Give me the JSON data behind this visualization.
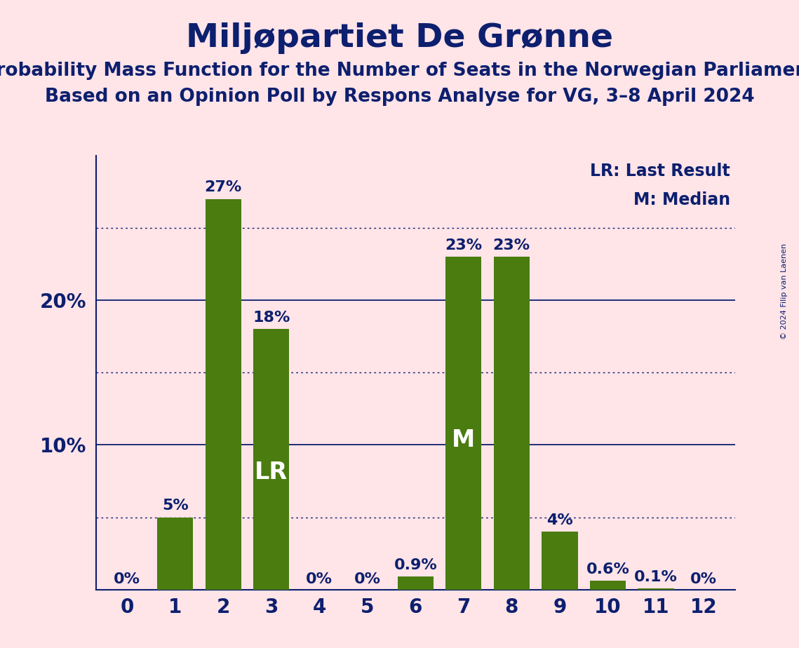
{
  "title": "Miljøpartiet De Grønne",
  "subtitle1": "Probability Mass Function for the Number of Seats in the Norwegian Parliament",
  "subtitle2": "Based on an Opinion Poll by Respons Analyse for VG, 3–8 April 2024",
  "copyright": "© 2024 Filip van Laenen",
  "categories": [
    0,
    1,
    2,
    3,
    4,
    5,
    6,
    7,
    8,
    9,
    10,
    11,
    12
  ],
  "values": [
    0.0,
    5.0,
    27.0,
    18.0,
    0.0,
    0.0,
    0.9,
    23.0,
    23.0,
    4.0,
    0.6,
    0.1,
    0.0
  ],
  "labels": [
    "0%",
    "5%",
    "27%",
    "18%",
    "0%",
    "0%",
    "0.9%",
    "23%",
    "23%",
    "4%",
    "0.6%",
    "0.1%",
    "0%"
  ],
  "bar_color": "#4a7c10",
  "background_color": "#FFE4E8",
  "text_color": "#0d1f6e",
  "bar_text_color": "#ffffff",
  "legend_lr": "LR: Last Result",
  "legend_m": "M: Median",
  "lr_bar": 3,
  "m_bar": 7,
  "solid_gridlines": [
    10.0,
    20.0
  ],
  "dotted_gridlines": [
    5.0,
    15.0,
    25.0
  ],
  "ylim": [
    0,
    30
  ],
  "ytick_positions": [
    10,
    20
  ],
  "ytick_labels": [
    "10%",
    "20%"
  ],
  "title_fontsize": 34,
  "subtitle_fontsize": 19,
  "tick_fontsize": 20,
  "legend_fontsize": 17,
  "bar_label_fontsize": 16,
  "lr_m_fontsize": 24
}
